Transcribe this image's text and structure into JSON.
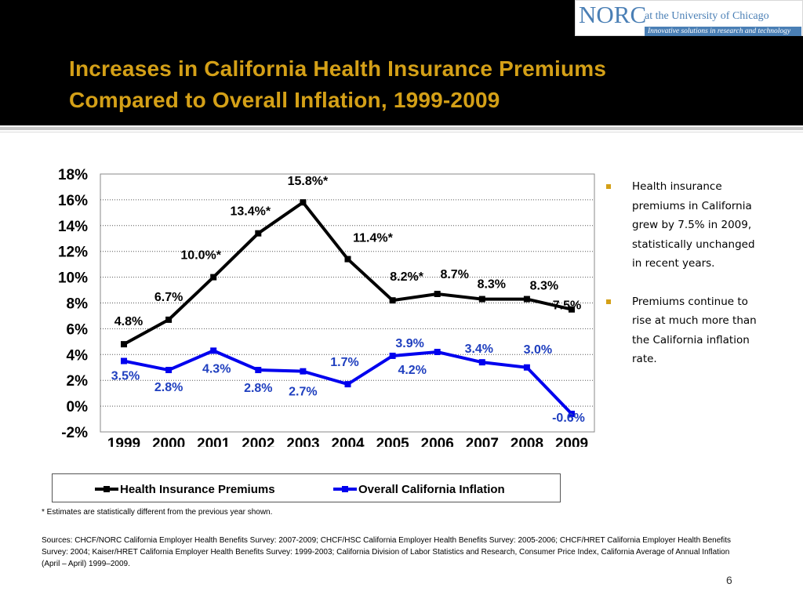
{
  "slide": {
    "title_line1": "Increases in California Health Insurance Premiums",
    "title_line2": "Compared to Overall Inflation, 1999-2009",
    "page_number": "6"
  },
  "logo": {
    "main": "NORC",
    "sub": "at the University of Chicago",
    "tagline": "Innovative solutions in research and technology"
  },
  "bullets": [
    "Health insurance premiums in California grew by 7.5% in 2009, statistically unchanged  in recent years.",
    "Premiums continue to rise at much more than the California inflation rate."
  ],
  "footnote": "* Estimates are statistically different from the previous year shown.",
  "sources": "Sources: CHCF/NORC California Employer Health Benefits Survey: 2007-2009; CHCF/HSC California Employer Health Benefits Survey: 2005-2006; CHCF/HRET California Employer Health Benefits Survey: 2004; Kaiser/HRET California Employer Health Benefits Survey: 1999-2003; California Division of Labor Statistics and Research, Consumer Price Index, California Average of Annual Inflation (April – April) 1999–2009.",
  "colors": {
    "title": "#d4a017",
    "premiums": "#000000",
    "inflation": "#0000ee",
    "inflation_label": "#1f3fbf"
  },
  "chart_data": {
    "type": "line",
    "categories": [
      "1999",
      "2000",
      "2001",
      "2002",
      "2003",
      "2004",
      "2005",
      "2006",
      "2007",
      "2008",
      "2009"
    ],
    "ylim": [
      -2,
      18
    ],
    "yticks": [
      "18%",
      "16%",
      "14%",
      "12%",
      "10%",
      "8%",
      "6%",
      "4%",
      "2%",
      "0%",
      "-2%"
    ],
    "grid": true,
    "legend": "bottom",
    "series": [
      {
        "name": "Health Insurance Premiums",
        "values": [
          4.8,
          6.7,
          10.0,
          13.4,
          15.8,
          11.4,
          8.2,
          8.7,
          8.3,
          8.3,
          7.5
        ],
        "labels": [
          "4.8%",
          "6.7%",
          "10.0%*",
          "13.4%*",
          "15.8%*",
          "11.4%*",
          "8.2%*",
          "8.7%",
          "8.3%",
          "8.3%",
          "7.5%"
        ]
      },
      {
        "name": "Overall California Inflation",
        "values": [
          3.5,
          2.8,
          4.3,
          2.8,
          2.7,
          1.7,
          3.9,
          4.2,
          3.4,
          3.0,
          -0.6
        ],
        "labels": [
          "3.5%",
          "2.8%",
          "4.3%",
          "2.8%",
          "2.7%",
          "1.7%",
          "3.9%",
          "4.2%",
          "3.4%",
          "3.0%",
          "-0.6%"
        ]
      }
    ]
  }
}
